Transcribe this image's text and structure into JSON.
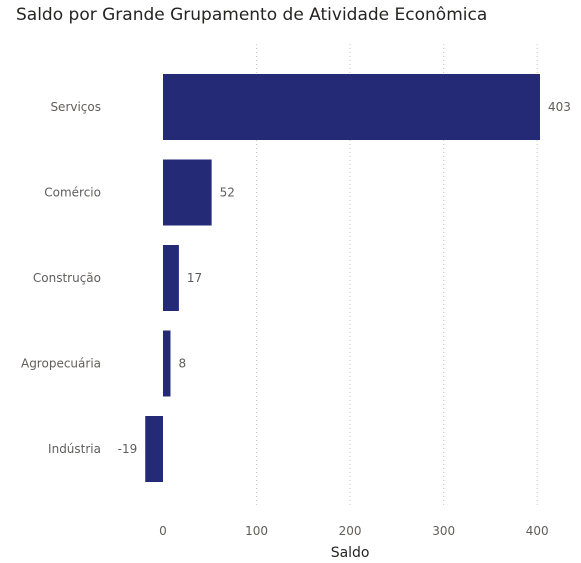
{
  "chart_data": {
    "type": "bar",
    "orientation": "horizontal",
    "title": "Saldo por Grande Grupamento de Atividade Econômica",
    "xlabel": "Saldo",
    "ylabel": "",
    "categories": [
      "Serviços",
      "Comércio",
      "Construção",
      "Agropecuária",
      "Indústria"
    ],
    "values": [
      403,
      52,
      17,
      8,
      -19
    ],
    "data_labels": [
      "403",
      "52",
      "17",
      "8",
      "-19"
    ],
    "xlim": [
      -19,
      403
    ],
    "xticks": [
      0,
      100,
      200,
      300,
      400
    ],
    "xtick_labels": [
      "0",
      "100",
      "200",
      "300",
      "400"
    ],
    "grid": "vertical dotted",
    "bar_color": "#252A77",
    "grid_color": "#C8C6C4"
  }
}
